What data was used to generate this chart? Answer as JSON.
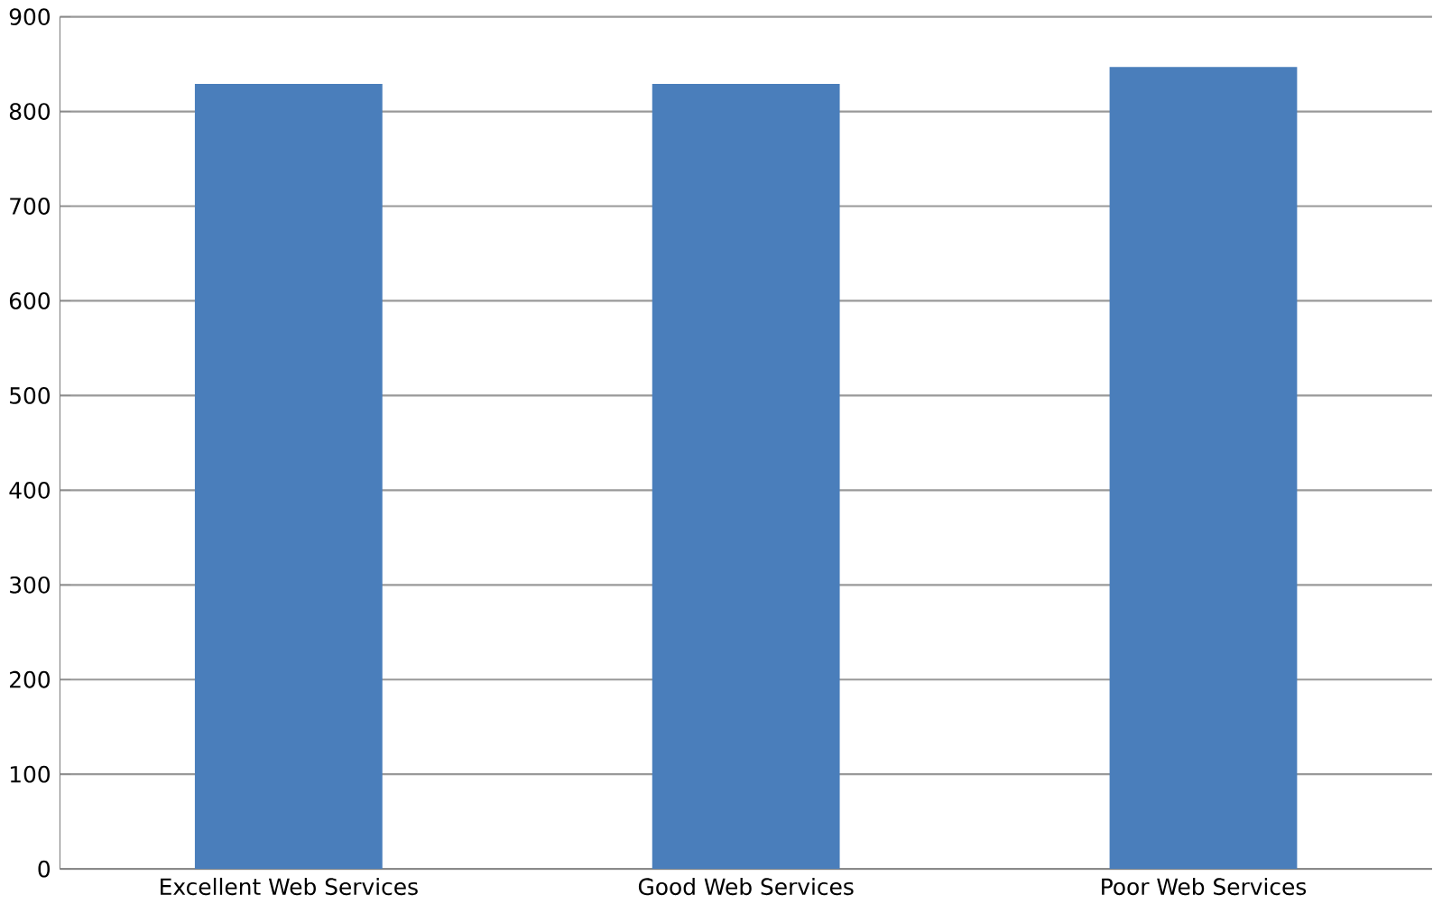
{
  "chart_data": {
    "type": "bar",
    "categories": [
      "Excellent Web Services",
      "Good Web Services",
      "Poor Web Services"
    ],
    "values": [
      829,
      829,
      847
    ],
    "color": "#4a7ebb",
    "ylim": [
      0,
      900
    ],
    "yticks": [
      0,
      100,
      200,
      300,
      400,
      500,
      600,
      700,
      800,
      900
    ],
    "grid": "y"
  }
}
